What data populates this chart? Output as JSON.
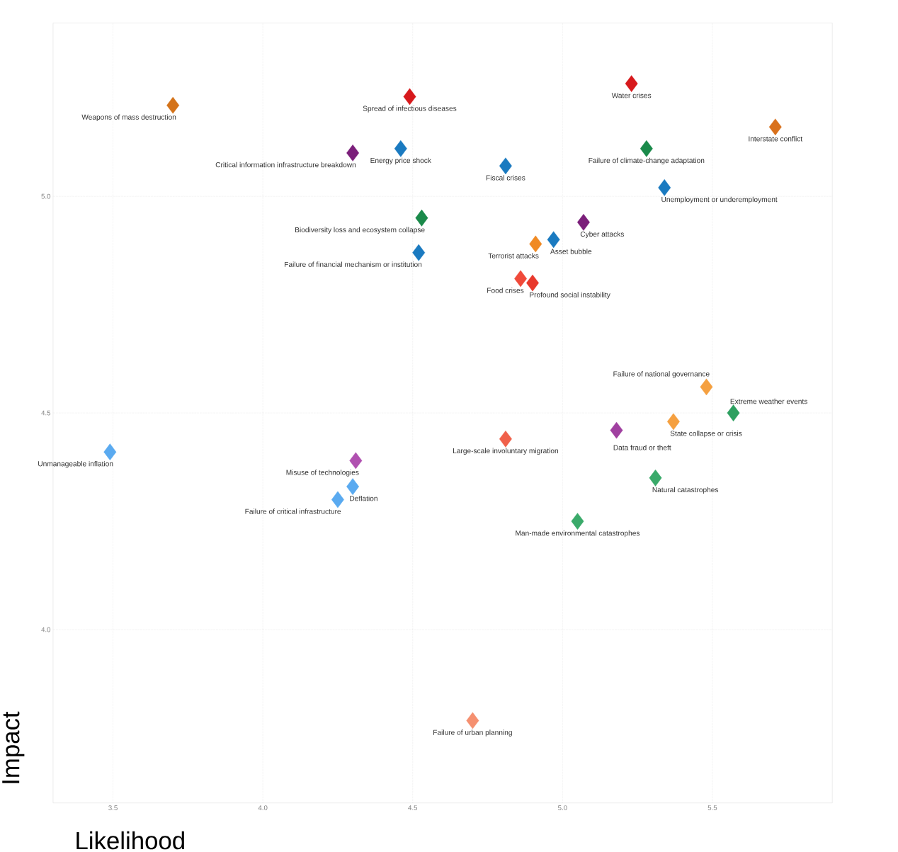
{
  "chart_data": {
    "type": "scatter",
    "xlabel": "Likelihood",
    "ylabel": "Impact",
    "marker": "diamond",
    "grid": true,
    "xlim": [
      3.3,
      5.9
    ],
    "ylim": [
      3.6,
      5.4
    ],
    "xticks": [
      3.5,
      {
        "value": 4,
        "label": "4.0"
      },
      4.5,
      {
        "value": 5,
        "label": "5.0"
      },
      5.5
    ],
    "yticks": [
      {
        "value": 4,
        "label": "4.0"
      },
      4.5,
      {
        "value": 5,
        "label": "5.0"
      }
    ],
    "x": [
      3.7,
      4.49,
      5.23,
      5.71,
      4.3,
      4.46,
      4.81,
      5.28,
      5.34,
      4.53,
      4.52,
      5.07,
      4.97,
      4.91,
      4.86,
      4.9,
      5.48,
      5.57,
      5.37,
      5.18,
      4.81,
      3.49,
      4.31,
      4.3,
      4.25,
      5.31,
      5.05,
      4.7
    ],
    "values": [
      5.21,
      5.23,
      5.26,
      5.16,
      5.1,
      5.11,
      5.07,
      5.11,
      5.02,
      4.95,
      4.87,
      4.94,
      4.9,
      4.89,
      4.81,
      4.8,
      4.56,
      4.5,
      4.48,
      4.46,
      4.44,
      4.41,
      4.39,
      4.33,
      4.3,
      4.35,
      4.25,
      3.79
    ],
    "colors": [
      "#d4731a",
      "#d7191c",
      "#d7191c",
      "#d9711c",
      "#7b1f7a",
      "#1a7ac0",
      "#1a7ac0",
      "#1a8a4a",
      "#1a7ac0",
      "#1a8a4a",
      "#1a7ac0",
      "#7b1f7a",
      "#1a7ac0",
      "#f08a24",
      "#f04a3a",
      "#e8382c",
      "#f5a040",
      "#2ea060",
      "#f5a040",
      "#a040a0",
      "#f0604a",
      "#5aaaf0",
      "#b050b0",
      "#5aaaf0",
      "#5aaaf0",
      "#3aaa6a",
      "#3aaa6a",
      "#f59070"
    ],
    "annotations": [
      {
        "text": "Weapons of mass destruction",
        "x": 3.7,
        "y": 5.21
      },
      {
        "text": "Spread of infectious diseases",
        "x": 4.49,
        "y": 5.23
      },
      {
        "text": "Water crises",
        "x": 5.23,
        "y": 5.26
      },
      {
        "text": "Interstate conflict",
        "x": 5.71,
        "y": 5.16
      },
      {
        "text": "Critical information infrastructure breakdown",
        "x": 4.3,
        "y": 5.1
      },
      {
        "text": "Energy price shock",
        "x": 4.46,
        "y": 5.11
      },
      {
        "text": "Fiscal crises",
        "x": 4.81,
        "y": 5.07
      },
      {
        "text": "Failure of climate-change adaptation",
        "x": 5.28,
        "y": 5.11
      },
      {
        "text": "Unemployment or underemployment",
        "x": 5.34,
        "y": 5.02
      },
      {
        "text": "Biodiversity loss and ecosystem collapse",
        "x": 4.53,
        "y": 4.95
      },
      {
        "text": "Failure of financial mechanism or institution",
        "x": 4.52,
        "y": 4.87
      },
      {
        "text": "Cyber attacks",
        "x": 5.07,
        "y": 4.94
      },
      {
        "text": "Asset bubble",
        "x": 4.97,
        "y": 4.9
      },
      {
        "text": "Terrorist attacks",
        "x": 4.91,
        "y": 4.89
      },
      {
        "text": "Food crises",
        "x": 4.86,
        "y": 4.81
      },
      {
        "text": "Profound social instability",
        "x": 4.9,
        "y": 4.8
      },
      {
        "text": "Failure of national governance",
        "x": 5.48,
        "y": 4.56
      },
      {
        "text": "Extreme weather events",
        "x": 5.57,
        "y": 4.5
      },
      {
        "text": "State collapse or crisis",
        "x": 5.37,
        "y": 4.48
      },
      {
        "text": "Data fraud or theft",
        "x": 5.18,
        "y": 4.46
      },
      {
        "text": "Large-scale involuntary migration",
        "x": 4.81,
        "y": 4.44
      },
      {
        "text": "Unmanageable inflation",
        "x": 3.49,
        "y": 4.41
      },
      {
        "text": "Misuse of technologies",
        "x": 4.31,
        "y": 4.39
      },
      {
        "text": "Deflation",
        "x": 4.3,
        "y": 4.33
      },
      {
        "text": "Failure of critical infrastructure",
        "x": 4.25,
        "y": 4.3
      },
      {
        "text": "Natural catastrophes",
        "x": 5.31,
        "y": 4.35
      },
      {
        "text": "Man-made environmental catastrophes",
        "x": 5.05,
        "y": 4.25
      },
      {
        "text": "Failure of urban planning",
        "x": 4.7,
        "y": 3.79
      }
    ]
  }
}
